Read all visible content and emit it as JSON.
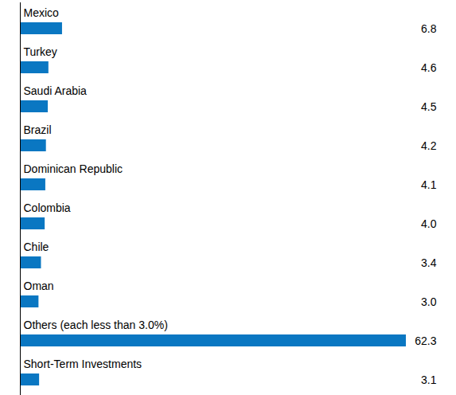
{
  "chart_data": {
    "type": "bar",
    "orientation": "horizontal",
    "categories": [
      "Mexico",
      "Turkey",
      "Saudi Arabia",
      "Brazil",
      "Dominican Republic",
      "Colombia",
      "Chile",
      "Oman",
      "Others (each less than 3.0%)",
      "Short-Term Investments"
    ],
    "values": [
      6.8,
      4.6,
      4.5,
      4.2,
      4.1,
      4.0,
      3.4,
      3.0,
      62.3,
      3.1
    ],
    "value_labels": [
      "6.8",
      "4.6",
      "4.5",
      "4.2",
      "4.1",
      "4.0",
      "3.4",
      "3.0",
      "62.3",
      "3.1"
    ],
    "color": "#0a77c2",
    "xlim": [
      0,
      62.3
    ],
    "data_labels": true,
    "tick_labels": false,
    "grid": false
  }
}
